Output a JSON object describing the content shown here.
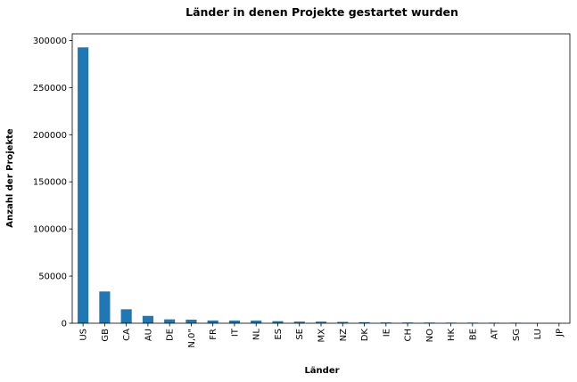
{
  "chart_data": {
    "type": "bar",
    "title": "Länder in denen Projekte gestartet wurden",
    "xlabel": "Länder",
    "ylabel": "Anzahl der Projekte",
    "categories": [
      "US",
      "GB",
      "CA",
      "AU",
      "DE",
      "N,0\"",
      "FR",
      "IT",
      "NL",
      "ES",
      "SE",
      "MX",
      "NZ",
      "DK",
      "IE",
      "CH",
      "NO",
      "HK",
      "BE",
      "AT",
      "SG",
      "LU",
      "JP"
    ],
    "values": [
      292600,
      33700,
      14800,
      7800,
      4100,
      3800,
      2900,
      2800,
      2800,
      2200,
      1700,
      1700,
      1400,
      1100,
      800,
      750,
      700,
      600,
      600,
      550,
      540,
      60,
      40
    ],
    "yticks": [
      0,
      50000,
      100000,
      150000,
      200000,
      250000,
      300000
    ],
    "ylim": [
      0,
      307000
    ],
    "bar_color": "#1f77b4",
    "grid": false,
    "legend": "none"
  }
}
